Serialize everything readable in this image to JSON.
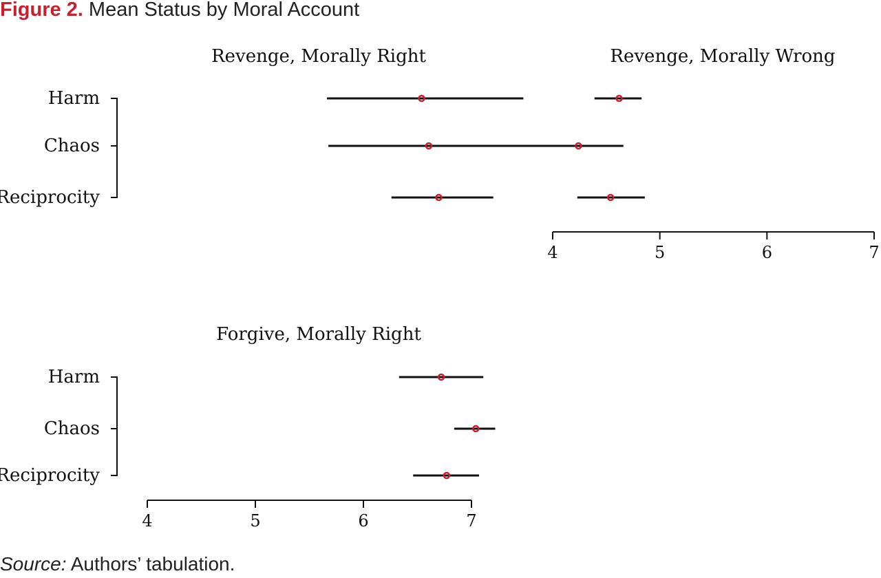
{
  "figure": {
    "label": "Figure 2.",
    "title": "Mean Status by Moral Account",
    "source_label": "Source:",
    "source_text": " Authors’ tabulation."
  },
  "colors": {
    "point": "#c8202e",
    "line": "#111111",
    "text": "#111111",
    "label": "#c8202e"
  },
  "chart_data": [
    {
      "type": "dot-whisker",
      "title": "Revenge, Morally Right",
      "categories": [
        "Harm",
        "Chaos",
        "Reciprocity"
      ],
      "xlim": [
        4,
        7
      ],
      "xticks": [],
      "points": [
        {
          "category": "Harm",
          "mean": 6.1,
          "low": 5.44,
          "high": 6.81
        },
        {
          "category": "Chaos",
          "mean": 6.15,
          "low": 5.45,
          "high": 6.93
        },
        {
          "category": "Reciprocity",
          "mean": 6.22,
          "low": 5.89,
          "high": 6.6
        }
      ]
    },
    {
      "type": "dot-whisker",
      "title": "Revenge, Morally Wrong",
      "categories": [
        "Harm",
        "Chaos",
        "Reciprocity"
      ],
      "xlim": [
        4,
        7
      ],
      "xticks": [
        "4",
        "5",
        "6",
        "7"
      ],
      "points": [
        {
          "category": "Harm",
          "mean": 4.62,
          "low": 4.39,
          "high": 4.83
        },
        {
          "category": "Chaos",
          "mean": 4.24,
          "low": 3.84,
          "high": 4.66
        },
        {
          "category": "Reciprocity",
          "mean": 4.54,
          "low": 4.23,
          "high": 4.86
        }
      ]
    },
    {
      "type": "dot-whisker",
      "title": "Forgive, Morally Right",
      "categories": [
        "Harm",
        "Chaos",
        "Reciprocity"
      ],
      "xlim": [
        4,
        7
      ],
      "xticks": [
        "4",
        "5",
        "6",
        "7"
      ],
      "points": [
        {
          "category": "Harm",
          "mean": 6.72,
          "low": 6.33,
          "high": 7.11
        },
        {
          "category": "Chaos",
          "mean": 7.04,
          "low": 6.84,
          "high": 7.22
        },
        {
          "category": "Reciprocity",
          "mean": 6.77,
          "low": 6.46,
          "high": 7.07
        }
      ]
    }
  ]
}
